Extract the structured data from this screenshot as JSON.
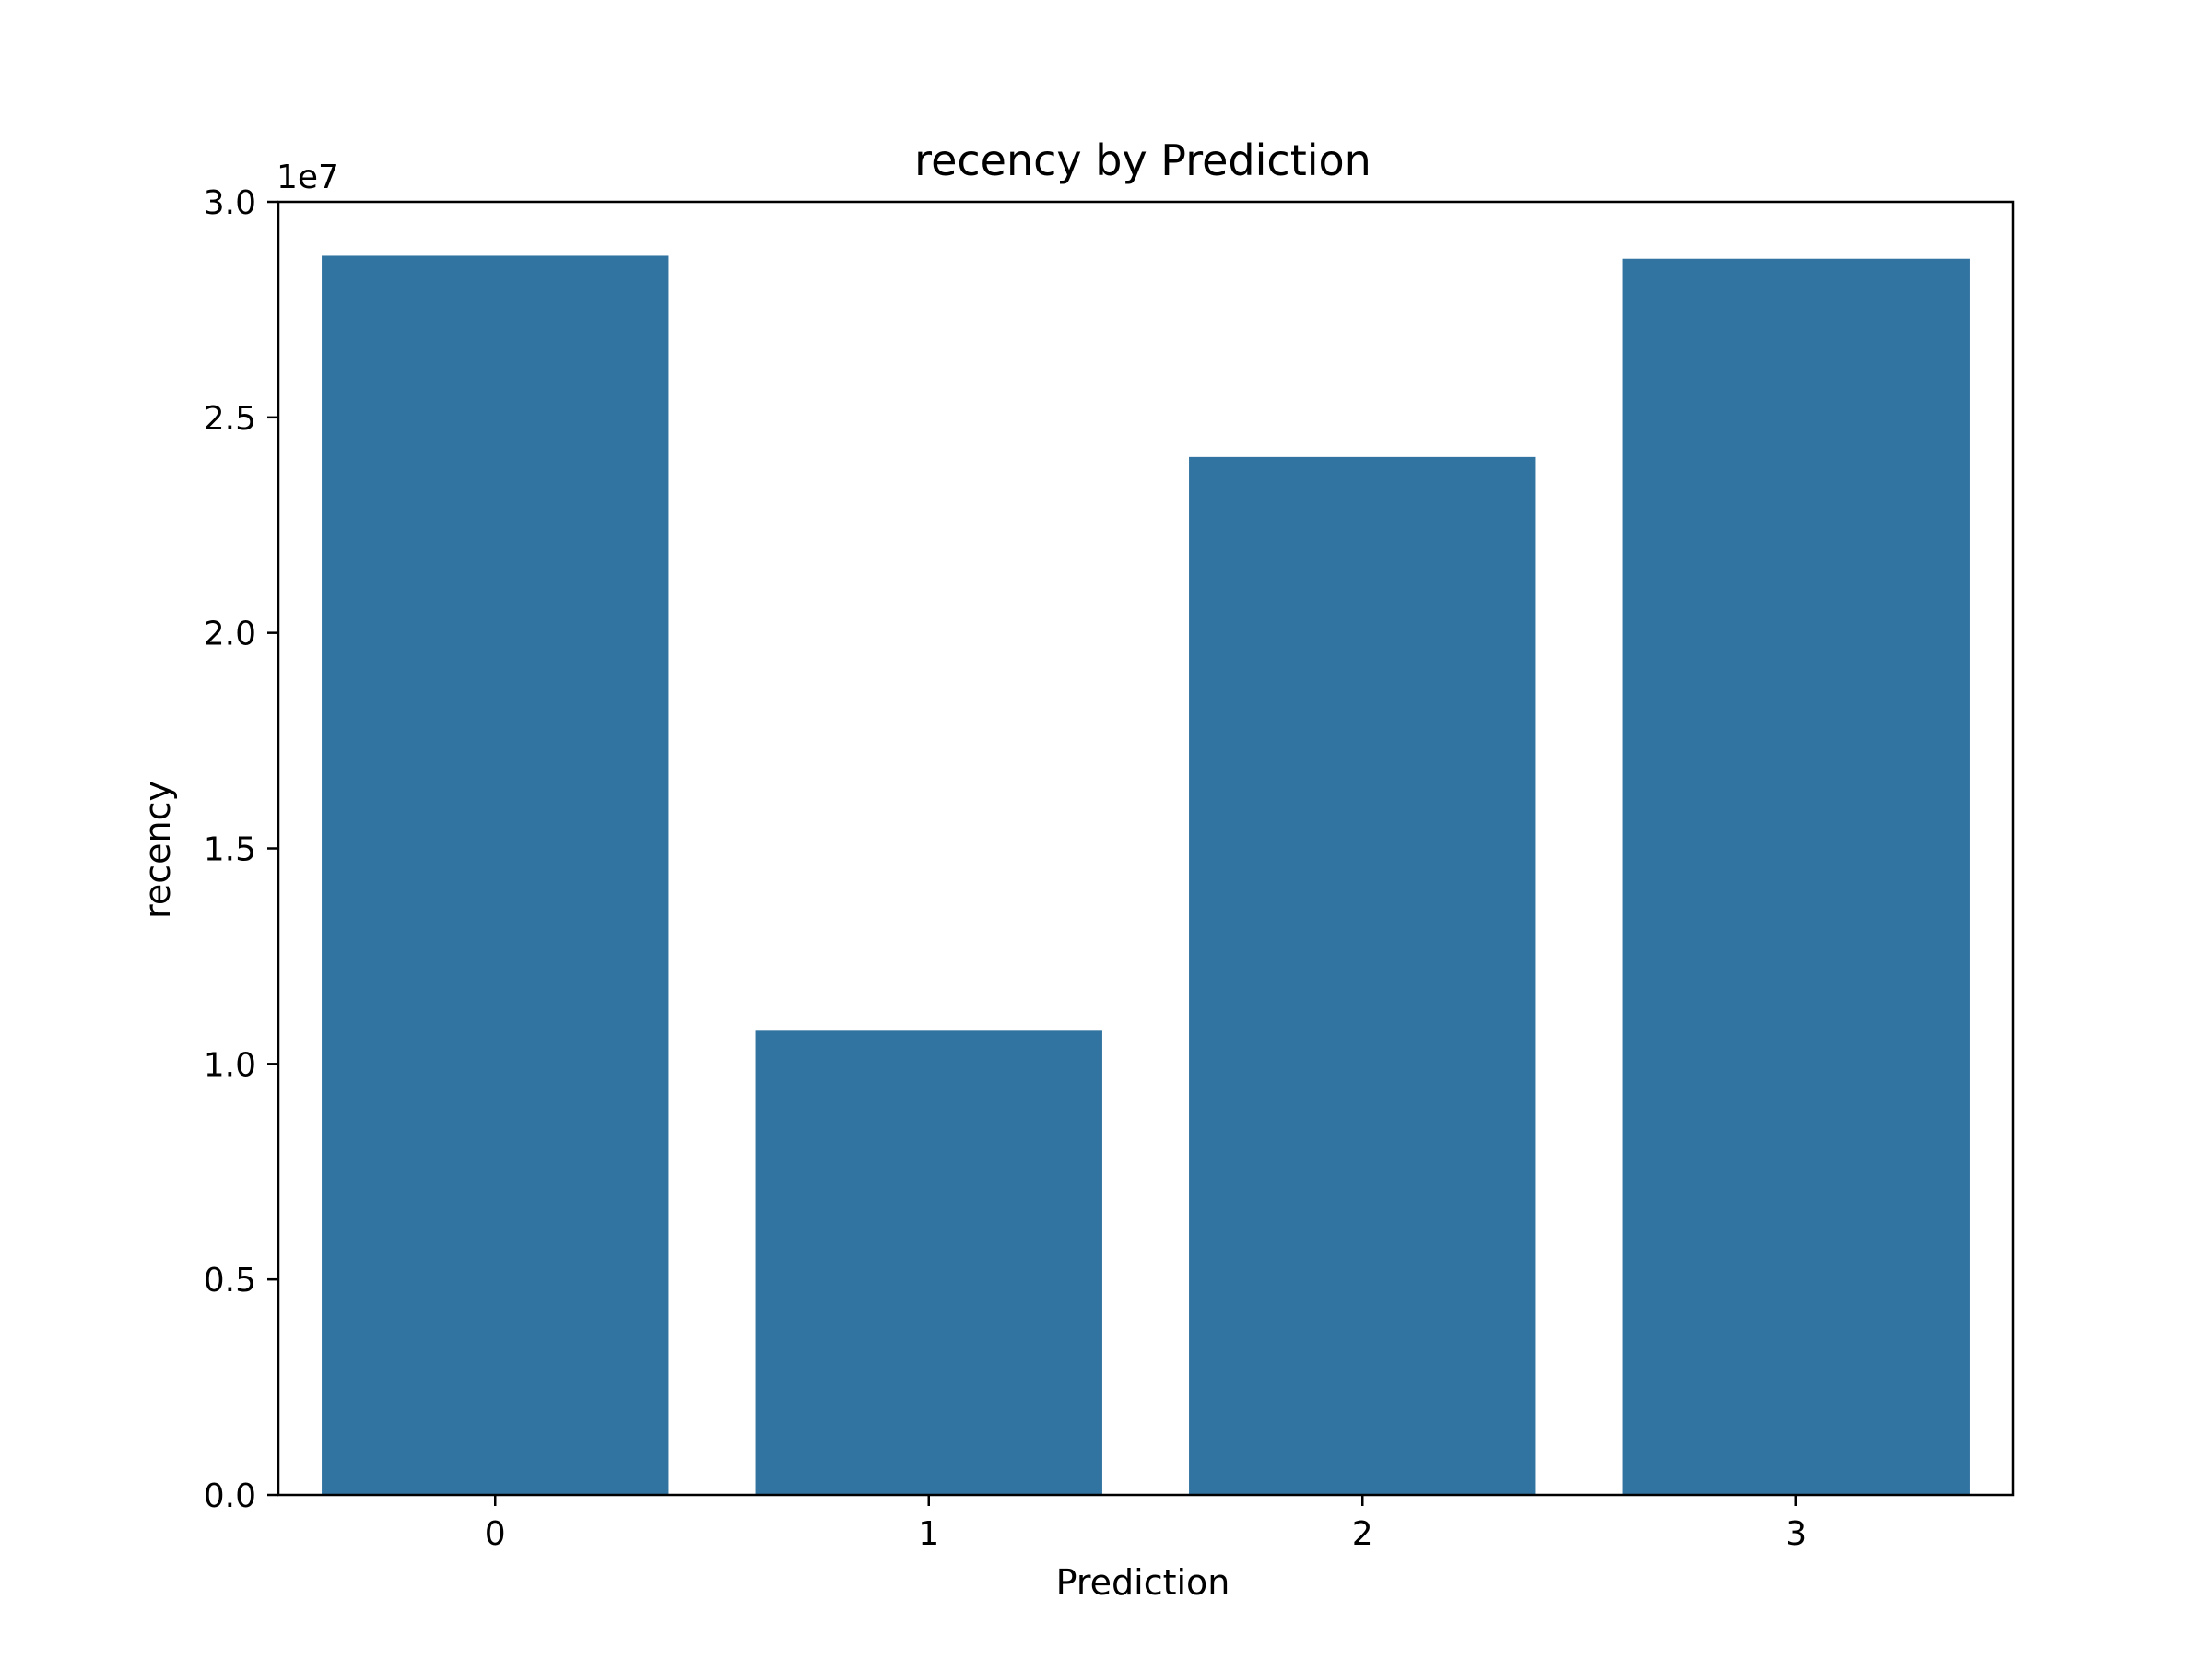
{
  "chart_data": {
    "type": "bar",
    "title": "recency by Prediction",
    "xlabel": "Prediction",
    "ylabel": "recency",
    "categories": [
      "0",
      "1",
      "2",
      "3"
    ],
    "values": [
      28750000,
      10770000,
      24080000,
      28680000
    ],
    "ylim": [
      0,
      30000000
    ],
    "yticks": [
      0,
      5000000,
      10000000,
      15000000,
      20000000,
      25000000,
      30000000
    ],
    "ytick_labels": [
      "0.0",
      "0.5",
      "1.0",
      "1.5",
      "2.0",
      "2.5",
      "3.0"
    ],
    "y_offset_label": "1e7",
    "bar_color": "#3274a1",
    "grid": false,
    "legend": "none"
  }
}
